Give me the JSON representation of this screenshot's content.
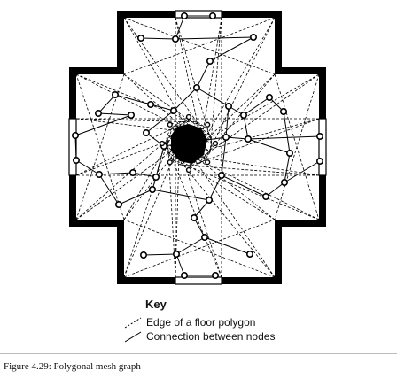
{
  "key": {
    "title": "Key",
    "items": [
      {
        "label": "Edge of a floor polygon"
      },
      {
        "label": "Connection between nodes"
      }
    ]
  },
  "caption": "Figure 4.29: Polygonal mesh graph"
}
